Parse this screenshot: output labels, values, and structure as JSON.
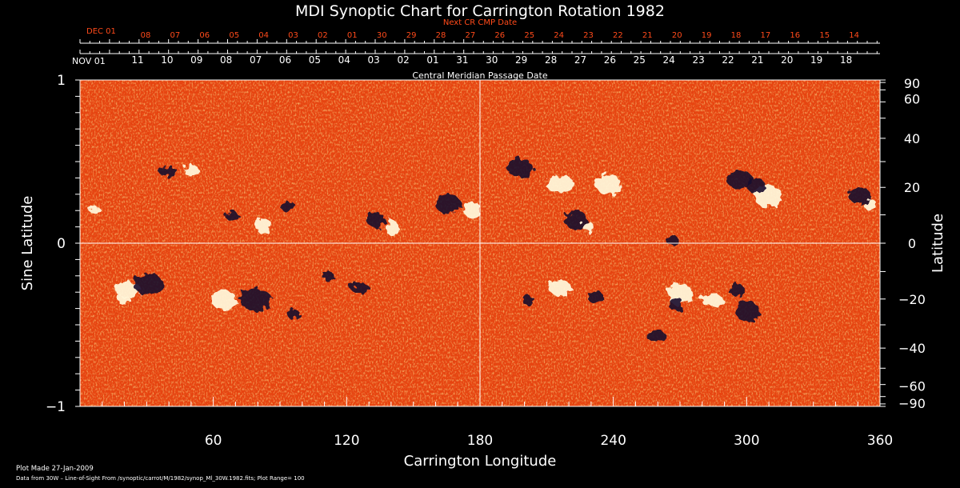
{
  "chart_data": {
    "type": "heatmap",
    "title": "MDI Synoptic Chart for Carrington Rotation 1982",
    "xlabel": "Carrington Longitude",
    "ylabel_left": "Sine Latitude",
    "ylabel_right": "Latitude",
    "xlim": [
      0,
      360
    ],
    "ylim": [
      -1,
      1
    ],
    "x_ticks": [
      60,
      120,
      180,
      240,
      300,
      360
    ],
    "left_y_ticks": [
      {
        "value": 1,
        "label": "1"
      },
      {
        "value": 0,
        "label": "0"
      },
      {
        "value": -1,
        "label": "−1"
      }
    ],
    "right_y_ticks": [
      "90",
      "60",
      "40",
      "20",
      "0",
      "−20",
      "−40",
      "−60",
      "−90"
    ],
    "right_y_values": [
      90,
      60,
      40,
      20,
      0,
      -20,
      -40,
      -60,
      -90
    ],
    "top_axis": {
      "title": "Central Meridian Passage Date",
      "month_label": "NOV 01",
      "day_labels": [
        "11",
        "10",
        "09",
        "08",
        "07",
        "06",
        "05",
        "04",
        "03",
        "02",
        "01",
        "31",
        "30",
        "29",
        "28",
        "27",
        "26",
        "25",
        "24",
        "23",
        "22",
        "21",
        "20",
        "19",
        "18"
      ]
    },
    "next_axis": {
      "title": "Next CR CMP Date",
      "month_label": "DEC 01",
      "day_labels": [
        "08",
        "07",
        "06",
        "05",
        "04",
        "03",
        "02",
        "01",
        "30",
        "29",
        "28",
        "27",
        "26",
        "25",
        "24",
        "23",
        "22",
        "21",
        "20",
        "19",
        "18",
        "17",
        "16",
        "15",
        "14"
      ]
    },
    "colors": {
      "background_field": "#e8440f",
      "positive_polarity": "#ffffff",
      "negative_polarity": "#1a0a2e",
      "next_axis": "#ff4a1a"
    },
    "colormap": "red-orange-yellow-white (negative dark, positive white)",
    "grid_lines": "lines at longitude 180 and sine latitude 0",
    "plot_range": "100",
    "notes": [
      "Plot Made 27-Jan-2009",
      "Data from 30W – Line-of-Sight From /synoptic/carrot/M/1982/synop_Ml_30W.1982.fits; Plot Range=  100"
    ]
  }
}
